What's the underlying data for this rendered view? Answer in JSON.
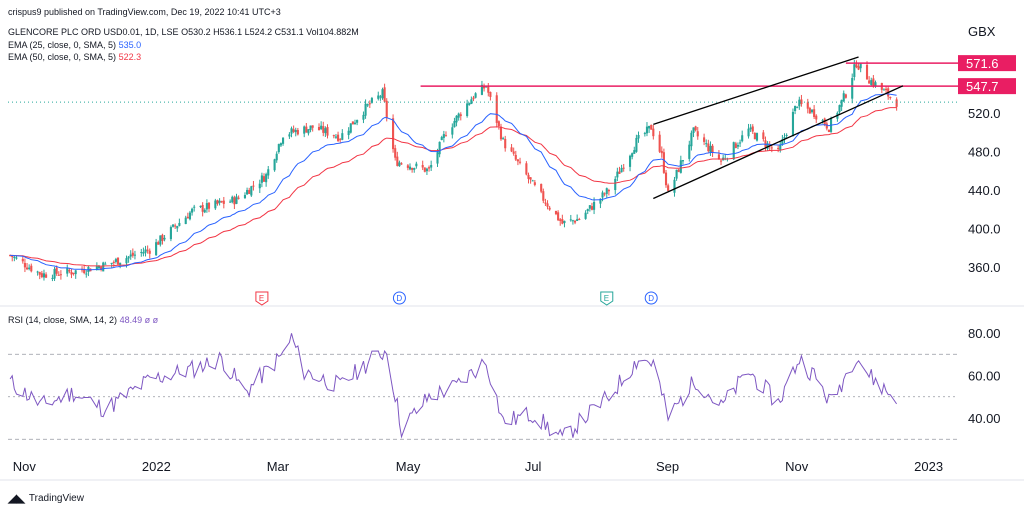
{
  "header": {
    "publisher": "crispus9 published on TradingView.com, Dec 19, 2022 10:41 UTC+3",
    "symbol": "GLENCORE PLC ORD USD0.01, 1D, LSE",
    "ohlc": "O530.2 H536.1 L524.2 C531.1 Vol104.882M",
    "ema25_label": "EMA (25, close, 0, SMA, 5)",
    "ema25_value": "535.0",
    "ema50_label": "EMA (50, close, 0, SMA, 5)",
    "ema50_value": "522.3",
    "rsi_label": "RSI (14, close, SMA, 14, 2)",
    "rsi_value": "48.49  ø  ø"
  },
  "currency": "GBX",
  "footer_logo": "TradingView",
  "colors": {
    "candle_up": "#26a69a",
    "candle_down": "#ef5350",
    "ema25": "#2962ff",
    "ema50": "#f23645",
    "level": "#e91e63",
    "channel": "#000000",
    "rsi": "#7e57c2"
  },
  "chart_data": {
    "type": "candlestick",
    "price_axis_ticks": [
      "520.0",
      "480.0",
      "440.0",
      "400.0",
      "360.0"
    ],
    "price_ylim": [
      338,
      606
    ],
    "horizontal_levels": [
      {
        "label": "571.6",
        "value": 571.6
      },
      {
        "label": "547.7",
        "value": 547.7
      }
    ],
    "current_price": 531.1,
    "channel": {
      "upper": [
        {
          "date": "2022-08-26",
          "value": 508
        },
        {
          "date": "2022-12-01",
          "value": 578
        }
      ],
      "lower": [
        {
          "date": "2022-08-26",
          "value": 431
        },
        {
          "date": "2022-12-22",
          "value": 548
        }
      ]
    },
    "x_axis_labels": [
      "Nov",
      "2022",
      "Mar",
      "May",
      "Jul",
      "Sep",
      "Nov",
      "2023"
    ],
    "events": [
      {
        "label": "E",
        "date": "2022-02-22",
        "kind": "earnings",
        "color": "#f23645"
      },
      {
        "label": "D",
        "date": "2022-04-28",
        "kind": "dividend",
        "color": "#2962ff"
      },
      {
        "label": "E",
        "date": "2022-08-04",
        "kind": "earnings",
        "color": "#26a69a"
      },
      {
        "label": "D",
        "date": "2022-08-25",
        "kind": "dividend",
        "color": "#2962ff"
      }
    ],
    "price_anchors": [
      [
        "2021-10-26",
        372
      ],
      [
        "2021-11-10",
        352
      ],
      [
        "2021-11-25",
        355
      ],
      [
        "2021-12-10",
        362
      ],
      [
        "2021-12-31",
        378
      ],
      [
        "2022-01-20",
        418
      ],
      [
        "2022-02-10",
        430
      ],
      [
        "2022-02-24",
        455
      ],
      [
        "2022-03-04",
        498
      ],
      [
        "2022-03-18",
        505
      ],
      [
        "2022-03-31",
        495
      ],
      [
        "2022-04-12",
        525
      ],
      [
        "2022-04-20",
        540
      ],
      [
        "2022-04-26",
        470
      ],
      [
        "2022-05-12",
        460
      ],
      [
        "2022-05-20",
        500
      ],
      [
        "2022-06-01",
        535
      ],
      [
        "2022-06-08",
        548
      ],
      [
        "2022-06-16",
        490
      ],
      [
        "2022-06-30",
        445
      ],
      [
        "2022-07-14",
        405
      ],
      [
        "2022-07-22",
        410
      ],
      [
        "2022-08-05",
        440
      ],
      [
        "2022-08-18",
        490
      ],
      [
        "2022-08-25",
        505
      ],
      [
        "2022-08-30",
        475
      ],
      [
        "2022-09-02",
        435
      ],
      [
        "2022-09-14",
        500
      ],
      [
        "2022-09-27",
        470
      ],
      [
        "2022-10-10",
        502
      ],
      [
        "2022-10-24",
        478
      ],
      [
        "2022-11-02",
        530
      ],
      [
        "2022-11-10",
        520
      ],
      [
        "2022-11-17",
        505
      ],
      [
        "2022-11-25",
        540
      ],
      [
        "2022-11-30",
        572
      ],
      [
        "2022-12-06",
        555
      ],
      [
        "2022-12-19",
        531
      ]
    ],
    "rsi": {
      "axis_ticks": [
        "80.00",
        "60.00",
        "40.00"
      ],
      "ylim": [
        24,
        88
      ],
      "levels": [
        70,
        50,
        30
      ],
      "anchors": [
        [
          "2021-10-26",
          57
        ],
        [
          "2021-11-10",
          46
        ],
        [
          "2021-11-25",
          52
        ],
        [
          "2021-12-10",
          44
        ],
        [
          "2021-12-31",
          58
        ],
        [
          "2022-01-20",
          63
        ],
        [
          "2022-02-03",
          68
        ],
        [
          "2022-02-14",
          52
        ],
        [
          "2022-03-04",
          70
        ],
        [
          "2022-03-08",
          78
        ],
        [
          "2022-03-14",
          62
        ],
        [
          "2022-03-31",
          55
        ],
        [
          "2022-04-14",
          67
        ],
        [
          "2022-04-22",
          72
        ],
        [
          "2022-04-29",
          35
        ],
        [
          "2022-05-12",
          50
        ],
        [
          "2022-05-25",
          55
        ],
        [
          "2022-06-08",
          67
        ],
        [
          "2022-06-16",
          38
        ],
        [
          "2022-06-30",
          42
        ],
        [
          "2022-07-14",
          30
        ],
        [
          "2022-07-22",
          38
        ],
        [
          "2022-08-05",
          50
        ],
        [
          "2022-08-19",
          68
        ],
        [
          "2022-08-26",
          66
        ],
        [
          "2022-09-02",
          40
        ],
        [
          "2022-09-15",
          58
        ],
        [
          "2022-09-27",
          45
        ],
        [
          "2022-10-10",
          62
        ],
        [
          "2022-10-24",
          47
        ],
        [
          "2022-11-03",
          68
        ],
        [
          "2022-11-10",
          60
        ],
        [
          "2022-11-18",
          47
        ],
        [
          "2022-11-30",
          70
        ],
        [
          "2022-12-06",
          60
        ],
        [
          "2022-12-19",
          48.49
        ]
      ]
    }
  }
}
